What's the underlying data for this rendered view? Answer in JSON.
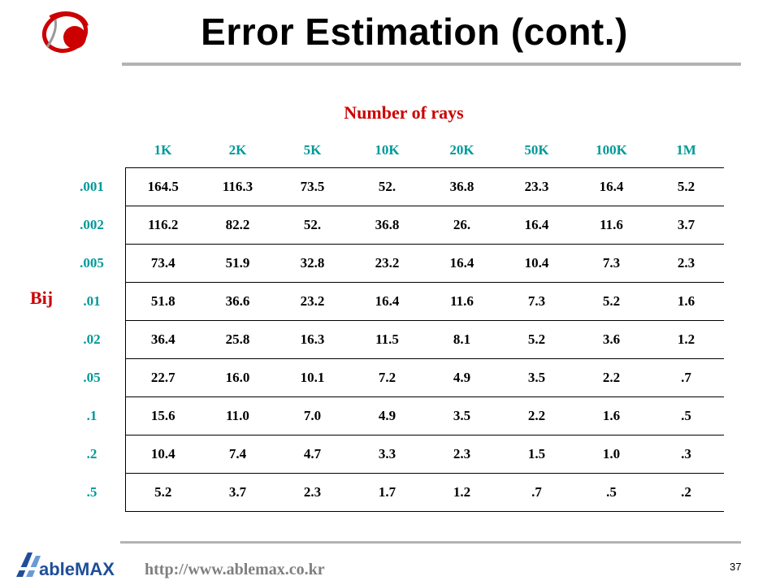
{
  "slide": {
    "title": "Error Estimation (cont.)",
    "page_number": "37",
    "footer_url": "http://www.ablemax.co.kr",
    "footer_logo_text": "AbleMAX"
  },
  "table": {
    "column_axis_label": "Number of rays",
    "row_axis_label": "Bij",
    "columns": [
      "1K",
      "2K",
      "5K",
      "10K",
      "20K",
      "50K",
      "100K",
      "1M"
    ],
    "rows": [
      {
        "label": ".001",
        "values": [
          "164.5",
          "116.3",
          "73.5",
          "52.",
          "36.8",
          "23.3",
          "16.4",
          "5.2"
        ]
      },
      {
        "label": ".002",
        "values": [
          "116.2",
          "82.2",
          "52.",
          "36.8",
          "26.",
          "16.4",
          "11.6",
          "3.7"
        ]
      },
      {
        "label": ".005",
        "values": [
          "73.4",
          "51.9",
          "32.8",
          "23.2",
          "16.4",
          "10.4",
          "7.3",
          "2.3"
        ]
      },
      {
        "label": ".01",
        "values": [
          "51.8",
          "36.6",
          "23.2",
          "16.4",
          "11.6",
          "7.3",
          "5.2",
          "1.6"
        ]
      },
      {
        "label": ".02",
        "values": [
          "36.4",
          "25.8",
          "16.3",
          "11.5",
          "8.1",
          "5.2",
          "3.6",
          "1.2"
        ]
      },
      {
        "label": ".05",
        "values": [
          "22.7",
          "16.0",
          "10.1",
          "7.2",
          "4.9",
          "3.5",
          "2.2",
          ".7"
        ]
      },
      {
        "label": ".1",
        "values": [
          "15.6",
          "11.0",
          "7.0",
          "4.9",
          "3.5",
          "2.2",
          "1.6",
          ".5"
        ]
      },
      {
        "label": ".2",
        "values": [
          "10.4",
          "7.4",
          "4.7",
          "3.3",
          "2.3",
          "1.5",
          "1.0",
          ".3"
        ]
      },
      {
        "label": ".5",
        "values": [
          "5.2",
          "3.7",
          "2.3",
          "1.7",
          "1.2",
          ".7",
          ".5",
          ".2"
        ]
      }
    ]
  },
  "colors": {
    "header_teal": "#009999",
    "axis_red": "#cc0000",
    "rule_gray": "#b3b3b3",
    "logo_red": "#cc0000",
    "footer_blue": "#1f4e99"
  }
}
